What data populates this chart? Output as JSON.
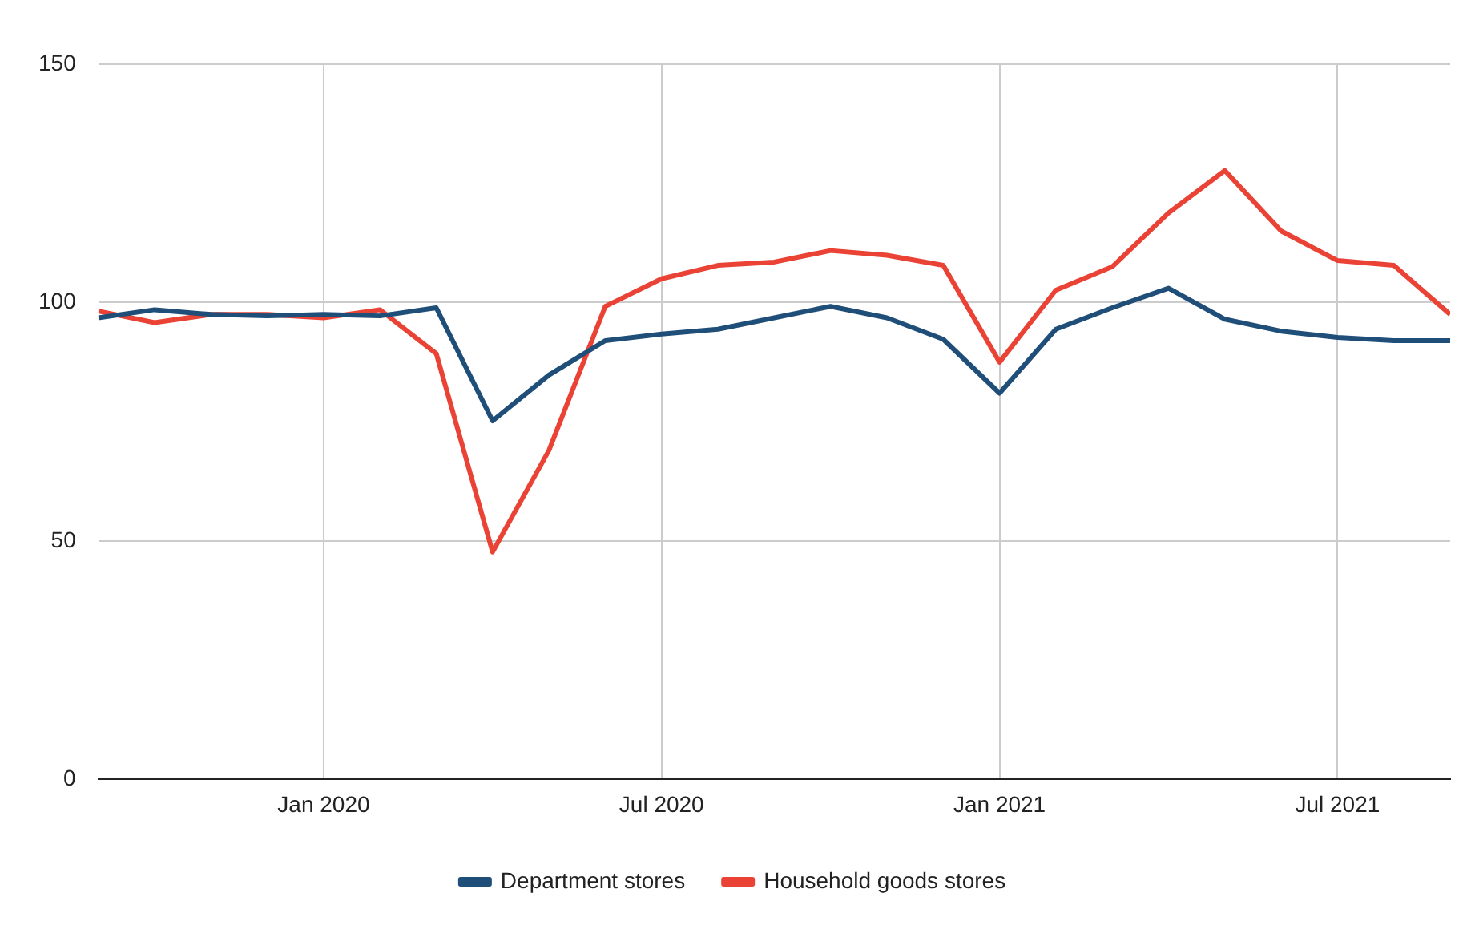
{
  "chart_data": {
    "type": "line",
    "x": [
      "2019-09",
      "2019-10",
      "2019-11",
      "2019-12",
      "2020-01",
      "2020-02",
      "2020-03",
      "2020-04",
      "2020-05",
      "2020-06",
      "2020-07",
      "2020-08",
      "2020-09",
      "2020-10",
      "2020-11",
      "2020-12",
      "2021-01",
      "2021-02",
      "2021-03",
      "2021-04",
      "2021-05",
      "2021-06",
      "2021-07",
      "2021-08",
      "2021-09"
    ],
    "series": [
      {
        "name": "Department stores",
        "color": "#1f4e79",
        "values": [
          96.8,
          98.5,
          97.5,
          97.2,
          97.5,
          97.2,
          98.9,
          75.2,
          84.8,
          92,
          93.4,
          94.4,
          96.8,
          99.2,
          96.8,
          92.3,
          81,
          94.4,
          98.9,
          103,
          96.5,
          94,
          92.7,
          92,
          92
        ]
      },
      {
        "name": "Household goods stores",
        "color": "#ea4335",
        "values": [
          98.2,
          95.8,
          97.5,
          97.5,
          96.8,
          98.5,
          89.3,
          47.7,
          69,
          99.2,
          105,
          107.8,
          108.5,
          110.9,
          109.9,
          107.8,
          87.5,
          102.6,
          107.5,
          118.8,
          127.7,
          115,
          108.8,
          107.8,
          97.5
        ]
      }
    ],
    "xlim": [
      "2019-09",
      "2021-09"
    ],
    "xticks": [
      {
        "value": "2020-01",
        "label": "Jan 2020"
      },
      {
        "value": "2020-07",
        "label": "Jul 2020"
      },
      {
        "value": "2021-01",
        "label": "Jan 2021"
      },
      {
        "value": "2021-07",
        "label": "Jul 2021"
      }
    ],
    "ylim": [
      0,
      150
    ],
    "yticks": [
      0,
      50,
      100,
      150
    ],
    "grid": true,
    "legend": "bottom",
    "marker": "none",
    "line_style": "solid"
  }
}
